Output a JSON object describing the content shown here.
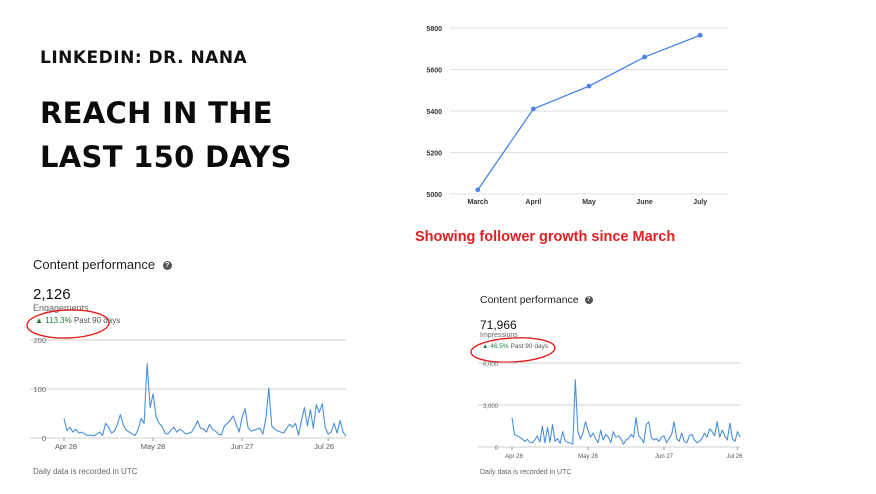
{
  "brand": "LINKEDIN: DR. NANA",
  "headline": {
    "line1": "REACH IN THE",
    "line2": "LAST 150 DAYS"
  },
  "caption": "Showing follower growth since March",
  "chart_data": [
    {
      "type": "line",
      "categories": [
        "March",
        "April",
        "May",
        "June",
        "July"
      ],
      "values": [
        5020,
        5410,
        5520,
        5660,
        5765
      ],
      "ylim": [
        5000,
        5800
      ],
      "yticks": [
        5000,
        5200,
        5400,
        5600,
        5800
      ],
      "grid": true,
      "color": "#4a86e8"
    },
    {
      "type": "line",
      "title": "Content performance",
      "total": "2,126",
      "total_label": "Engagements",
      "change_pct": "113.3%",
      "change_label": "Past 90 days",
      "note": "Daily data is recorded in UTC",
      "ylim": [
        0,
        200
      ],
      "yticks": [
        0,
        100,
        200
      ],
      "ytick_labels": [
        "0",
        "100",
        "200"
      ],
      "xtick_labels": [
        "Apr 28",
        "May 28",
        "Jun 27",
        "Jul 26"
      ],
      "xtick_days": [
        0,
        30,
        60,
        89
      ],
      "color": "#4a90d9",
      "values": [
        40,
        15,
        22,
        12,
        18,
        10,
        12,
        8,
        5,
        6,
        4,
        8,
        12,
        5,
        30,
        22,
        10,
        14,
        28,
        48,
        26,
        16,
        12,
        8,
        5,
        18,
        40,
        30,
        152,
        62,
        90,
        45,
        30,
        24,
        10,
        8,
        16,
        22,
        12,
        18,
        14,
        8,
        10,
        12,
        22,
        35,
        20,
        18,
        12,
        28,
        18,
        14,
        8,
        6,
        24,
        30,
        36,
        45,
        28,
        12,
        42,
        60,
        22,
        14,
        16,
        18,
        20,
        8,
        40,
        102,
        24,
        18,
        15,
        12,
        10,
        20,
        28,
        22,
        30,
        6,
        35,
        62,
        25,
        58,
        20,
        68,
        52,
        70,
        22,
        8,
        12,
        30,
        10,
        36,
        12,
        4
      ]
    },
    {
      "type": "line",
      "title": "Content performance",
      "total": "71,966",
      "total_label": "Impressions",
      "change_pct": "46.5%",
      "change_label": "Past 90 days",
      "note": "Daily data is recorded in UTC",
      "ylim": [
        0,
        6000
      ],
      "yticks": [
        0,
        3000,
        6000
      ],
      "ytick_labels": [
        "0",
        "3,000",
        "6,000"
      ],
      "xtick_labels": [
        "Apr 28",
        "May 28",
        "Jun 27",
        "Jul 26"
      ],
      "xtick_days": [
        0,
        30,
        60,
        89
      ],
      "color": "#4a90d9",
      "values": [
        2100,
        900,
        800,
        700,
        600,
        400,
        550,
        350,
        300,
        500,
        800,
        350,
        1500,
        300,
        1400,
        350,
        1600,
        400,
        600,
        250,
        1100,
        450,
        350,
        300,
        200,
        4800,
        1100,
        550,
        1000,
        1800,
        1200,
        700,
        1000,
        600,
        300,
        1200,
        500,
        900,
        700,
        300,
        1100,
        700,
        800,
        600,
        200,
        500,
        600,
        900,
        700,
        2100,
        800,
        600,
        300,
        1600,
        1800,
        700,
        500,
        600,
        400,
        700,
        800,
        300,
        600,
        900,
        1800,
        600,
        400,
        1000,
        400,
        300,
        800,
        900,
        500,
        300,
        400,
        600,
        1000,
        700,
        1300,
        1100,
        800,
        1800,
        700,
        1200,
        800,
        500,
        1700,
        600,
        400,
        1100,
        700
      ]
    }
  ]
}
